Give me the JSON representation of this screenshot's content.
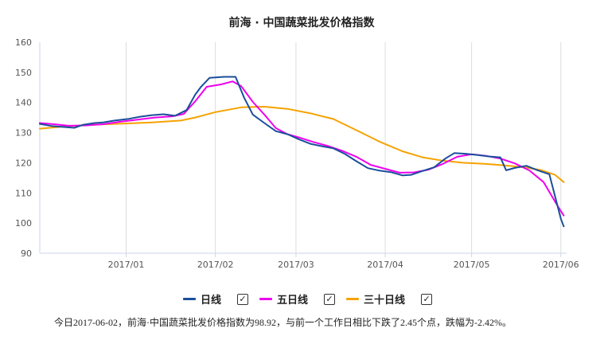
{
  "chart_data": {
    "type": "line",
    "title": "前海 · 中国蔬菜批发价格指数",
    "x_ticks": [
      "2017/01",
      "2017/02",
      "2017/03",
      "2017/04",
      "2017/05",
      "2017/06"
    ],
    "y_ticks": [
      90,
      100,
      110,
      120,
      130,
      140,
      150,
      160
    ],
    "ylim": [
      90,
      160
    ],
    "xlim": [
      "2016-12-02",
      "2017-06-03"
    ],
    "grid": "vertical lines at month ticks",
    "legend_position": "bottom",
    "series": [
      {
        "name": "日线",
        "color": "#1a4f9c",
        "points": [
          [
            "2016-12-02",
            132.9
          ],
          [
            "2016-12-06",
            132.2
          ],
          [
            "2016-12-10",
            131.9
          ],
          [
            "2016-12-14",
            131.6
          ],
          [
            "2016-12-17",
            132.6
          ],
          [
            "2016-12-21",
            133.2
          ],
          [
            "2016-12-24",
            133.4
          ],
          [
            "2016-12-28",
            134.0
          ],
          [
            "2017-01-02",
            134.6
          ],
          [
            "2017-01-06",
            135.3
          ],
          [
            "2017-01-10",
            135.8
          ],
          [
            "2017-01-14",
            136.1
          ],
          [
            "2017-01-18",
            135.6
          ],
          [
            "2017-01-22",
            137.5
          ],
          [
            "2017-01-25",
            142.6
          ],
          [
            "2017-01-27",
            145.2
          ],
          [
            "2017-01-30",
            148.2
          ],
          [
            "2017-02-04",
            148.5
          ],
          [
            "2017-02-08",
            148.5
          ],
          [
            "2017-02-11",
            141.6
          ],
          [
            "2017-02-14",
            136.0
          ],
          [
            "2017-02-18",
            133.2
          ],
          [
            "2017-02-22",
            130.5
          ],
          [
            "2017-02-26",
            129.5
          ],
          [
            "2017-03-02",
            127.8
          ],
          [
            "2017-03-06",
            126.3
          ],
          [
            "2017-03-10",
            125.5
          ],
          [
            "2017-03-14",
            124.8
          ],
          [
            "2017-03-18",
            122.9
          ],
          [
            "2017-03-22",
            120.5
          ],
          [
            "2017-03-26",
            118.2
          ],
          [
            "2017-03-30",
            117.4
          ],
          [
            "2017-04-03",
            116.9
          ],
          [
            "2017-04-07",
            115.8
          ],
          [
            "2017-04-10",
            116.0
          ],
          [
            "2017-04-14",
            117.3
          ],
          [
            "2017-04-18",
            118.5
          ],
          [
            "2017-04-22",
            121.5
          ],
          [
            "2017-04-25",
            123.2
          ],
          [
            "2017-04-29",
            123.0
          ],
          [
            "2017-05-03",
            122.6
          ],
          [
            "2017-05-07",
            122.1
          ],
          [
            "2017-05-11",
            121.8
          ],
          [
            "2017-05-13",
            117.5
          ],
          [
            "2017-05-16",
            118.3
          ],
          [
            "2017-05-20",
            119.0
          ],
          [
            "2017-05-24",
            117.5
          ],
          [
            "2017-05-28",
            116.2
          ],
          [
            "2017-06-01",
            101.4
          ],
          [
            "2017-06-02",
            98.9
          ]
        ]
      },
      {
        "name": "五日线",
        "color": "#ee00ee",
        "points": [
          [
            "2016-12-02",
            133.2
          ],
          [
            "2016-12-07",
            132.8
          ],
          [
            "2016-12-12",
            132.3
          ],
          [
            "2016-12-18",
            132.4
          ],
          [
            "2016-12-24",
            132.8
          ],
          [
            "2016-12-30",
            133.6
          ],
          [
            "2017-01-05",
            134.3
          ],
          [
            "2017-01-11",
            135.0
          ],
          [
            "2017-01-17",
            135.4
          ],
          [
            "2017-01-21",
            136.2
          ],
          [
            "2017-01-25",
            140.4
          ],
          [
            "2017-01-29",
            145.2
          ],
          [
            "2017-02-03",
            146.0
          ],
          [
            "2017-02-07",
            147.0
          ],
          [
            "2017-02-10",
            145.4
          ],
          [
            "2017-02-14",
            140.2
          ],
          [
            "2017-02-18",
            136.0
          ],
          [
            "2017-02-22",
            131.5
          ],
          [
            "2017-02-26",
            129.5
          ],
          [
            "2017-03-02",
            128.4
          ],
          [
            "2017-03-07",
            126.9
          ],
          [
            "2017-03-12",
            125.6
          ],
          [
            "2017-03-17",
            124.0
          ],
          [
            "2017-03-22",
            122.0
          ],
          [
            "2017-03-27",
            119.3
          ],
          [
            "2017-04-01",
            118.0
          ],
          [
            "2017-04-06",
            116.7
          ],
          [
            "2017-04-11",
            116.8
          ],
          [
            "2017-04-16",
            117.7
          ],
          [
            "2017-04-21",
            119.6
          ],
          [
            "2017-04-26",
            122.0
          ],
          [
            "2017-05-01",
            122.8
          ],
          [
            "2017-05-06",
            122.3
          ],
          [
            "2017-05-11",
            121.4
          ],
          [
            "2017-05-16",
            119.8
          ],
          [
            "2017-05-21",
            117.5
          ],
          [
            "2017-05-26",
            113.6
          ],
          [
            "2017-05-31",
            105.5
          ],
          [
            "2017-06-02",
            102.5
          ]
        ]
      },
      {
        "name": "三十日线",
        "color": "#f5a200",
        "points": [
          [
            "2016-12-02",
            131.3
          ],
          [
            "2016-12-10",
            132.0
          ],
          [
            "2016-12-20",
            132.6
          ],
          [
            "2016-12-31",
            133.0
          ],
          [
            "2017-01-10",
            133.4
          ],
          [
            "2017-01-20",
            134.0
          ],
          [
            "2017-01-25",
            135.0
          ],
          [
            "2017-02-01",
            136.8
          ],
          [
            "2017-02-10",
            138.4
          ],
          [
            "2017-02-18",
            138.6
          ],
          [
            "2017-02-26",
            137.9
          ],
          [
            "2017-03-06",
            136.4
          ],
          [
            "2017-03-14",
            134.5
          ],
          [
            "2017-03-22",
            130.8
          ],
          [
            "2017-03-30",
            127.0
          ],
          [
            "2017-04-07",
            123.8
          ],
          [
            "2017-04-14",
            121.8
          ],
          [
            "2017-04-21",
            120.7
          ],
          [
            "2017-04-28",
            120.0
          ],
          [
            "2017-05-06",
            119.6
          ],
          [
            "2017-05-14",
            119.0
          ],
          [
            "2017-05-20",
            118.4
          ],
          [
            "2017-05-25",
            117.6
          ],
          [
            "2017-05-30",
            116.0
          ],
          [
            "2017-06-02",
            113.6
          ]
        ]
      }
    ]
  },
  "legend": {
    "items": [
      {
        "label": "日线",
        "color": "#1a4f9c",
        "checked": "✓"
      },
      {
        "label": "五日线",
        "color": "#ee00ee",
        "checked": "✓"
      },
      {
        "label": "三十日线",
        "color": "#f5a200",
        "checked": "✓"
      }
    ]
  },
  "footer": {
    "text": "今日2017-06-02，前海·中国蔬菜批发价格指数为98.92，与前一个工作日相比下跌了2.45个点，跌幅为-2.42%。"
  }
}
